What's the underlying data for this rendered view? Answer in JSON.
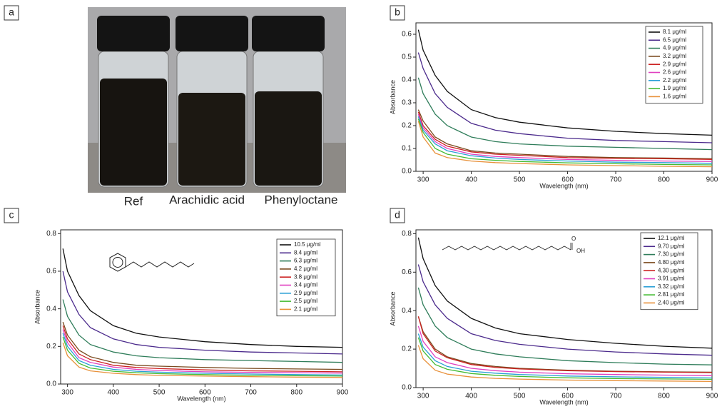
{
  "photo": {
    "panel_label": "a",
    "labels": [
      "Ref",
      "Arachidic acid",
      "Phenyloctane"
    ]
  },
  "chart_data": [
    {
      "type": "line",
      "panel_label": "b",
      "x_label": "Wavelength (nm)",
      "y_label": "Absorbance",
      "x": [
        290,
        300,
        325,
        350,
        400,
        450,
        500,
        600,
        700,
        800,
        900
      ],
      "xlim": [
        285,
        900
      ],
      "xticks": [
        300,
        400,
        500,
        600,
        700,
        800,
        900
      ],
      "ylim": [
        0,
        0.65
      ],
      "yticks": [
        {
          "value": 0,
          "label": "0.0"
        },
        0.1,
        0.2,
        0.3,
        0.4,
        0.5,
        0.6
      ],
      "legend": "upper right",
      "series": [
        {
          "name": "8.1 μg/ml",
          "color": "#111111",
          "values": [
            0.62,
            0.53,
            0.42,
            0.35,
            0.27,
            0.235,
            0.215,
            0.19,
            0.175,
            0.165,
            0.158
          ]
        },
        {
          "name": "6.5 μg/ml",
          "color": "#4b2a8c",
          "values": [
            0.52,
            0.45,
            0.34,
            0.28,
            0.21,
            0.18,
            0.165,
            0.145,
            0.135,
            0.13,
            0.125
          ]
        },
        {
          "name": "4.9 μg/ml",
          "color": "#2f7d5a",
          "values": [
            0.41,
            0.34,
            0.25,
            0.2,
            0.15,
            0.13,
            0.12,
            0.11,
            0.105,
            0.1,
            0.095
          ]
        },
        {
          "name": "3.2 μg/ml",
          "color": "#7a4a1e",
          "values": [
            0.27,
            0.22,
            0.15,
            0.12,
            0.09,
            0.08,
            0.075,
            0.065,
            0.06,
            0.058,
            0.055
          ]
        },
        {
          "name": "2.9 μg/ml",
          "color": "#cc2222",
          "values": [
            0.26,
            0.2,
            0.14,
            0.11,
            0.085,
            0.075,
            0.07,
            0.06,
            0.057,
            0.055,
            0.052
          ]
        },
        {
          "name": "2.6 μg/ml",
          "color": "#e040c0",
          "values": [
            0.25,
            0.19,
            0.13,
            0.1,
            0.075,
            0.065,
            0.06,
            0.052,
            0.048,
            0.045,
            0.043
          ]
        },
        {
          "name": "2.2 μg/ml",
          "color": "#2a9fd6",
          "values": [
            0.24,
            0.18,
            0.12,
            0.09,
            0.068,
            0.058,
            0.052,
            0.045,
            0.04,
            0.038,
            0.035
          ]
        },
        {
          "name": "1.9 μg/ml",
          "color": "#44bb33",
          "values": [
            0.23,
            0.17,
            0.1,
            0.075,
            0.055,
            0.048,
            0.043,
            0.037,
            0.033,
            0.03,
            0.028
          ]
        },
        {
          "name": "1.6 μg/ml",
          "color": "#e8913a",
          "values": [
            0.22,
            0.15,
            0.08,
            0.06,
            0.045,
            0.038,
            0.034,
            0.028,
            0.025,
            0.022,
            0.02
          ]
        }
      ]
    },
    {
      "type": "line",
      "panel_label": "c",
      "x_label": "Wavelength (nm)",
      "y_label": "Absorbance",
      "x": [
        290,
        300,
        325,
        350,
        400,
        450,
        500,
        600,
        700,
        800,
        900
      ],
      "xlim": [
        285,
        900
      ],
      "xticks": [
        300,
        400,
        500,
        600,
        700,
        800,
        900
      ],
      "ylim": [
        0,
        0.82
      ],
      "yticks": [
        {
          "value": 0,
          "label": "0.0"
        },
        0.2,
        0.4,
        0.6,
        0.8
      ],
      "legend": "upper right",
      "structure": "phenyloctane",
      "series": [
        {
          "name": "10.5 μg/ml",
          "color": "#111111",
          "values": [
            0.72,
            0.6,
            0.47,
            0.39,
            0.31,
            0.27,
            0.25,
            0.225,
            0.21,
            0.2,
            0.195
          ]
        },
        {
          "name": "8.4 μg/ml",
          "color": "#4b2a8c",
          "values": [
            0.6,
            0.49,
            0.37,
            0.3,
            0.24,
            0.21,
            0.195,
            0.18,
            0.17,
            0.165,
            0.16
          ]
        },
        {
          "name": "6.3 μg/ml",
          "color": "#2f7d5a",
          "values": [
            0.45,
            0.36,
            0.26,
            0.21,
            0.17,
            0.15,
            0.14,
            0.13,
            0.125,
            0.12,
            0.115
          ]
        },
        {
          "name": "4.2 μg/ml",
          "color": "#7a4a1e",
          "values": [
            0.33,
            0.26,
            0.18,
            0.145,
            0.115,
            0.1,
            0.095,
            0.088,
            0.083,
            0.08,
            0.078
          ]
        },
        {
          "name": "3.8 μg/ml",
          "color": "#cc2222",
          "values": [
            0.31,
            0.24,
            0.16,
            0.13,
            0.1,
            0.088,
            0.082,
            0.075,
            0.07,
            0.068,
            0.065
          ]
        },
        {
          "name": "3.4 μg/ml",
          "color": "#e040c0",
          "values": [
            0.29,
            0.22,
            0.14,
            0.115,
            0.09,
            0.078,
            0.072,
            0.065,
            0.062,
            0.06,
            0.058
          ]
        },
        {
          "name": "2.9 μg/ml",
          "color": "#2a9fd6",
          "values": [
            0.27,
            0.2,
            0.125,
            0.1,
            0.078,
            0.068,
            0.063,
            0.057,
            0.053,
            0.05,
            0.048
          ]
        },
        {
          "name": "2.5 μg/ml",
          "color": "#44bb33",
          "values": [
            0.25,
            0.18,
            0.11,
            0.085,
            0.068,
            0.06,
            0.055,
            0.05,
            0.046,
            0.044,
            0.042
          ]
        },
        {
          "name": "2.1 μg/ml",
          "color": "#e8913a",
          "values": [
            0.22,
            0.15,
            0.09,
            0.07,
            0.057,
            0.05,
            0.046,
            0.042,
            0.039,
            0.037,
            0.035
          ]
        }
      ]
    },
    {
      "type": "line",
      "panel_label": "d",
      "x_label": "Wavelength (nm)",
      "y_label": "Absorbance",
      "x": [
        290,
        300,
        325,
        350,
        400,
        450,
        500,
        600,
        700,
        800,
        900
      ],
      "xlim": [
        285,
        900
      ],
      "xticks": [
        300,
        400,
        500,
        600,
        700,
        800,
        900
      ],
      "ylim": [
        0,
        0.82
      ],
      "yticks": [
        {
          "value": 0,
          "label": "0.0"
        },
        0.2,
        0.4,
        0.6,
        0.8
      ],
      "legend": "upper right",
      "structure": "arachidic acid",
      "annotations": [
        "O",
        "OH"
      ],
      "series": [
        {
          "name": "12.1 μg/ml",
          "color": "#111111",
          "values": [
            0.78,
            0.67,
            0.53,
            0.45,
            0.36,
            0.31,
            0.28,
            0.25,
            0.23,
            0.215,
            0.205
          ]
        },
        {
          "name": "9.70 μg/ml",
          "color": "#4b2a8c",
          "values": [
            0.64,
            0.55,
            0.43,
            0.36,
            0.28,
            0.245,
            0.225,
            0.2,
            0.185,
            0.175,
            0.168
          ]
        },
        {
          "name": "7.30 μg/ml",
          "color": "#2f7d5a",
          "values": [
            0.52,
            0.43,
            0.32,
            0.26,
            0.2,
            0.175,
            0.16,
            0.14,
            0.13,
            0.122,
            0.118
          ]
        },
        {
          "name": "4.80 μg/ml",
          "color": "#7a4a1e",
          "values": [
            0.37,
            0.29,
            0.2,
            0.16,
            0.125,
            0.11,
            0.1,
            0.09,
            0.085,
            0.082,
            0.08
          ]
        },
        {
          "name": "4.30 μg/ml",
          "color": "#cc2222",
          "values": [
            0.37,
            0.28,
            0.19,
            0.155,
            0.12,
            0.105,
            0.097,
            0.088,
            0.083,
            0.08,
            0.078
          ]
        },
        {
          "name": "3.91 μg/ml",
          "color": "#e040c0",
          "values": [
            0.32,
            0.24,
            0.16,
            0.13,
            0.1,
            0.088,
            0.08,
            0.072,
            0.068,
            0.065,
            0.062
          ]
        },
        {
          "name": "3.32 μg/ml",
          "color": "#2a9fd6",
          "values": [
            0.28,
            0.21,
            0.14,
            0.11,
            0.085,
            0.075,
            0.068,
            0.06,
            0.056,
            0.053,
            0.05
          ]
        },
        {
          "name": "2.81 μg/ml",
          "color": "#44bb33",
          "values": [
            0.26,
            0.19,
            0.12,
            0.095,
            0.073,
            0.064,
            0.058,
            0.051,
            0.047,
            0.045,
            0.043
          ]
        },
        {
          "name": "2.40 μg/ml",
          "color": "#e8913a",
          "values": [
            0.22,
            0.15,
            0.09,
            0.07,
            0.055,
            0.048,
            0.044,
            0.039,
            0.036,
            0.034,
            0.032
          ]
        }
      ]
    }
  ]
}
